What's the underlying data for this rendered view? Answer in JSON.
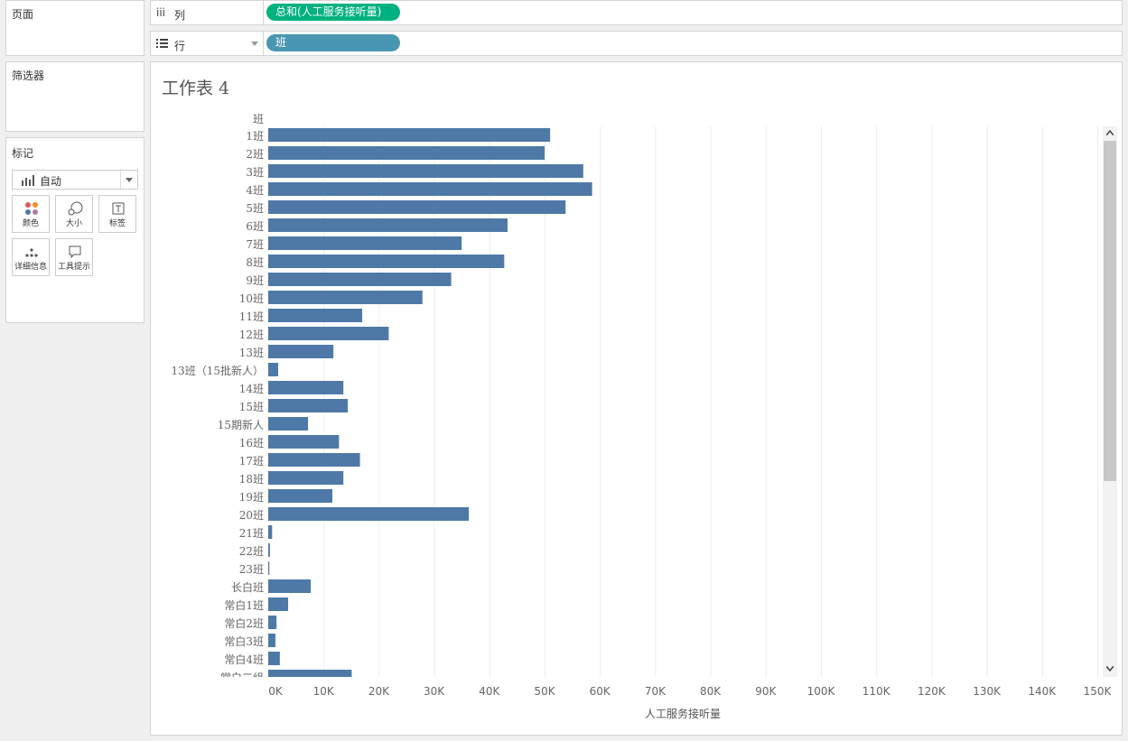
{
  "left_panels": {
    "pages": "页面",
    "filters": "筛选器",
    "marks": {
      "title": "标记",
      "type_label": "自动",
      "buttons": [
        {
          "label": "颜色",
          "icon": "color-dots-icon"
        },
        {
          "label": "大小",
          "icon": "size-icon"
        },
        {
          "label": "标签",
          "icon": "label-icon"
        },
        {
          "label": "详细信息",
          "icon": "detail-icon"
        },
        {
          "label": "工具提示",
          "icon": "tooltip-icon"
        }
      ]
    }
  },
  "shelves": {
    "columns": {
      "label": "列",
      "pill": "总和(人工服务接听量)",
      "pill_color": "#00b180"
    },
    "rows": {
      "label": "行",
      "pill": "班",
      "pill_color": "#4996b2"
    }
  },
  "sheet_title": "工作表 4",
  "chart_data": {
    "type": "bar",
    "orientation": "horizontal",
    "row_header": "班",
    "xlabel": "人工服务接听量",
    "xlim": [
      0,
      150000
    ],
    "ticks": [
      0,
      10000,
      20000,
      30000,
      40000,
      50000,
      60000,
      70000,
      80000,
      90000,
      100000,
      110000,
      120000,
      130000,
      140000,
      150000
    ],
    "tick_labels": [
      "0K",
      "10K",
      "20K",
      "30K",
      "40K",
      "50K",
      "60K",
      "70K",
      "80K",
      "90K",
      "100K",
      "110K",
      "120K",
      "130K",
      "140K",
      "150K"
    ],
    "bar_color": "#4e79a7",
    "categories": [
      "1班",
      "2班",
      "3班",
      "4班",
      "5班",
      "6班",
      "7班",
      "8班",
      "9班",
      "10班",
      "11班",
      "12班",
      "13班",
      "13班（15批新人）",
      "14班",
      "15班",
      "15期新人",
      "16班",
      "17班",
      "18班",
      "19班",
      "20班",
      "21班",
      "22班",
      "23班",
      "长白班",
      "常白1班",
      "常白2班",
      "常白3班",
      "常白4班",
      "常白二组"
    ],
    "values": [
      51000,
      50000,
      57000,
      58600,
      53800,
      43300,
      35000,
      42700,
      33100,
      27900,
      17000,
      21800,
      11800,
      1800,
      13600,
      14400,
      7200,
      12800,
      16600,
      13600,
      11600,
      36300,
      700,
      300,
      200,
      7700,
      3600,
      1500,
      1300,
      2100,
      15100
    ]
  }
}
